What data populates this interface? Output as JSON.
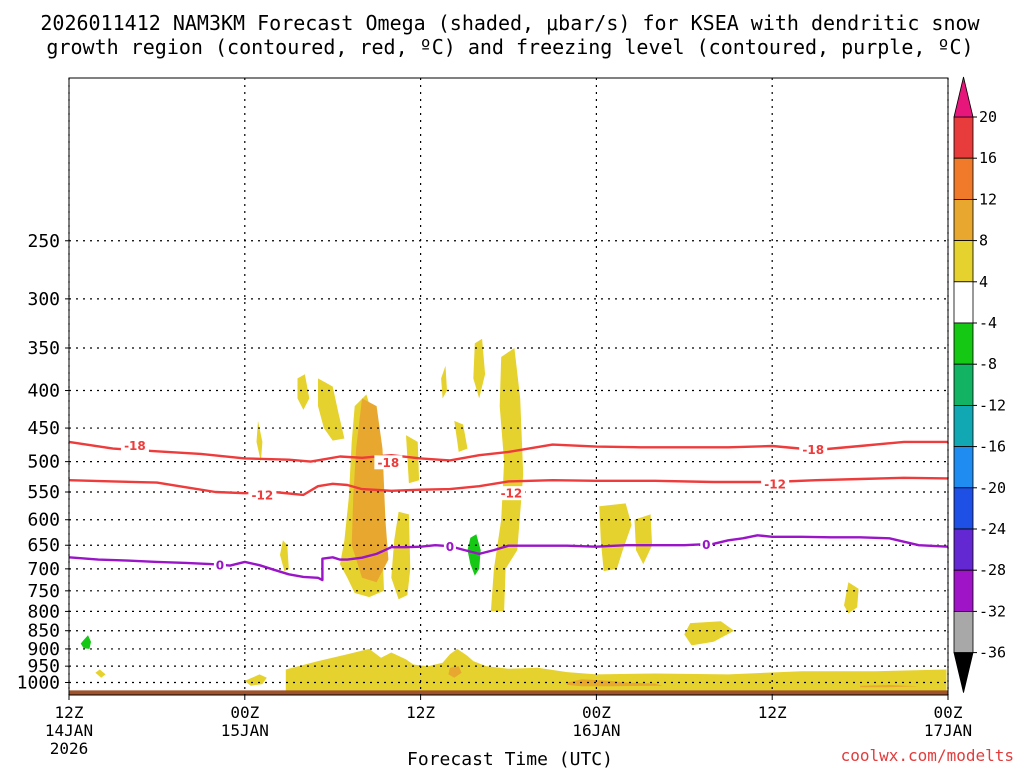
{
  "chart_data": {
    "type": "heatmap",
    "title_line1": "2026011412 NAM3KM Forecast Omega (shaded, μbar/s) for KSEA with dendritic snow",
    "title_line2": "growth region (contoured, red, ºC) and freezing level (contoured, purple, ºC)",
    "xlabel": "Forecast Time (UTC)",
    "ylabel": "",
    "credit": "coolwx.com/modelts",
    "x_unit": "forecast hour",
    "xlim": [
      0,
      60
    ],
    "ylim_hpa": [
      1040,
      150
    ],
    "y_ticks": [
      {
        "label": "250",
        "p": 250
      },
      {
        "label": "300",
        "p": 300
      },
      {
        "label": "350",
        "p": 350
      },
      {
        "label": "400",
        "p": 400
      },
      {
        "label": "450",
        "p": 450
      },
      {
        "label": "500",
        "p": 500
      },
      {
        "label": "550",
        "p": 550
      },
      {
        "label": "600",
        "p": 600
      },
      {
        "label": "650",
        "p": 650
      },
      {
        "label": "700",
        "p": 700
      },
      {
        "label": "750",
        "p": 750
      },
      {
        "label": "800",
        "p": 800
      },
      {
        "label": "850",
        "p": 850
      },
      {
        "label": "900",
        "p": 900
      },
      {
        "label": "950",
        "p": 950
      },
      {
        "label": "1000",
        "p": 1000
      }
    ],
    "x_ticks": [
      {
        "h": 0,
        "line1": "12Z",
        "line2": "14JAN",
        "line3": "2026"
      },
      {
        "h": 12,
        "line1": "00Z",
        "line2": "15JAN",
        "line3": ""
      },
      {
        "h": 24,
        "line1": "12Z",
        "line2": "",
        "line3": ""
      },
      {
        "h": 36,
        "line1": "00Z",
        "line2": "16JAN",
        "line3": ""
      },
      {
        "h": 48,
        "line1": "12Z",
        "line2": "",
        "line3": ""
      },
      {
        "h": 60,
        "line1": "00Z",
        "line2": "17JAN",
        "line3": ""
      }
    ],
    "colorbar": {
      "labels": [
        "20",
        "16",
        "12",
        "8",
        "4",
        "-4",
        "-8",
        "-12",
        "-16",
        "-20",
        "-24",
        "-28",
        "-32",
        "-36"
      ],
      "colors": [
        "#e83c3c",
        "#f07a2a",
        "#e8a830",
        "#e6d22e",
        "#ffffff",
        "#14c814",
        "#12b464",
        "#11a8b4",
        "#1e8cf0",
        "#1e50e6",
        "#6428d2",
        "#a014c8",
        "#a8a8a8"
      ],
      "top_arrow_color": "#e6167a",
      "bottom_arrow_color": "#000000"
    },
    "ground_color": "#a0522d",
    "omega_regions": [
      {
        "value": 6,
        "points": [
          [
            2.1,
            960
          ],
          [
            2.5,
            975
          ],
          [
            2.2,
            985
          ],
          [
            1.8,
            970
          ]
        ]
      },
      {
        "value": 6,
        "points": [
          [
            12.9,
            440
          ],
          [
            13.2,
            470
          ],
          [
            13.1,
            500
          ],
          [
            12.8,
            470
          ]
        ]
      },
      {
        "value": 6,
        "points": [
          [
            14.6,
            640
          ],
          [
            14.9,
            650
          ],
          [
            15.0,
            700
          ],
          [
            14.7,
            705
          ],
          [
            14.4,
            670
          ]
        ]
      },
      {
        "value": 6,
        "points": [
          [
            15.6,
            385
          ],
          [
            16.1,
            380
          ],
          [
            16.4,
            410
          ],
          [
            16.0,
            425
          ],
          [
            15.6,
            410
          ]
        ]
      },
      {
        "value": 6,
        "points": [
          [
            17.0,
            385
          ],
          [
            18.0,
            395
          ],
          [
            18.4,
            430
          ],
          [
            18.8,
            465
          ],
          [
            18.0,
            468
          ],
          [
            17.4,
            450
          ],
          [
            17.0,
            420
          ]
        ]
      },
      {
        "value": 6,
        "points": [
          [
            19.5,
            420
          ],
          [
            20.3,
            405
          ],
          [
            21.0,
            450
          ],
          [
            21.3,
            560
          ],
          [
            21.4,
            660
          ],
          [
            21.5,
            750
          ],
          [
            20.5,
            765
          ],
          [
            19.5,
            755
          ],
          [
            19.0,
            720
          ],
          [
            18.5,
            690
          ],
          [
            18.8,
            640
          ],
          [
            19.1,
            560
          ],
          [
            19.3,
            470
          ]
        ]
      },
      {
        "value": 6,
        "points": [
          [
            22.5,
            585
          ],
          [
            23.2,
            590
          ],
          [
            23.3,
            700
          ],
          [
            23.1,
            760
          ],
          [
            22.5,
            770
          ],
          [
            22.0,
            720
          ],
          [
            22.2,
            640
          ]
        ]
      },
      {
        "value": 6,
        "points": [
          [
            23.0,
            460
          ],
          [
            23.8,
            470
          ],
          [
            23.9,
            530
          ],
          [
            23.2,
            535
          ]
        ]
      },
      {
        "value": 6,
        "points": [
          [
            25.4,
            385
          ],
          [
            25.7,
            370
          ],
          [
            25.8,
            400
          ],
          [
            25.5,
            410
          ]
        ]
      },
      {
        "value": 6,
        "points": [
          [
            26.3,
            440
          ],
          [
            26.9,
            445
          ],
          [
            27.2,
            480
          ],
          [
            26.6,
            485
          ]
        ]
      },
      {
        "value": 6,
        "points": [
          [
            27.7,
            345
          ],
          [
            28.2,
            340
          ],
          [
            28.4,
            380
          ],
          [
            28.0,
            410
          ],
          [
            27.6,
            385
          ]
        ]
      },
      {
        "value": 6,
        "points": [
          [
            29.5,
            360
          ],
          [
            30.4,
            350
          ],
          [
            30.8,
            410
          ],
          [
            31.0,
            520
          ],
          [
            30.6,
            660
          ],
          [
            29.8,
            700
          ],
          [
            29.7,
            800
          ],
          [
            28.8,
            800
          ],
          [
            29.0,
            700
          ],
          [
            29.5,
            600
          ],
          [
            29.7,
            500
          ],
          [
            29.4,
            420
          ]
        ]
      },
      {
        "value": 6,
        "points": [
          [
            36.2,
            575
          ],
          [
            38.0,
            570
          ],
          [
            38.4,
            610
          ],
          [
            37.8,
            660
          ],
          [
            37.4,
            700
          ],
          [
            36.5,
            705
          ],
          [
            36.3,
            640
          ]
        ]
      },
      {
        "value": 6,
        "points": [
          [
            38.6,
            600
          ],
          [
            39.7,
            590
          ],
          [
            39.8,
            650
          ],
          [
            39.2,
            690
          ],
          [
            38.7,
            660
          ]
        ]
      },
      {
        "value": 6,
        "points": [
          [
            42.0,
            860
          ],
          [
            42.4,
            830
          ],
          [
            44.5,
            825
          ],
          [
            45.4,
            850
          ],
          [
            44.0,
            880
          ],
          [
            42.5,
            890
          ]
        ]
      },
      {
        "value": 6,
        "points": [
          [
            53.2,
            730
          ],
          [
            53.9,
            745
          ],
          [
            53.8,
            790
          ],
          [
            53.2,
            805
          ],
          [
            52.9,
            785
          ]
        ]
      },
      {
        "value": 6,
        "points": [
          [
            12.0,
            995
          ],
          [
            13.0,
            975
          ],
          [
            13.5,
            985
          ],
          [
            13.2,
            1005
          ],
          [
            12.4,
            1010
          ]
        ]
      },
      {
        "value": 6,
        "points": [
          [
            14.8,
            960
          ],
          [
            17.0,
            935
          ],
          [
            19.0,
            915
          ],
          [
            20.5,
            900
          ],
          [
            21.3,
            925
          ],
          [
            22.0,
            910
          ],
          [
            23.0,
            930
          ],
          [
            23.5,
            945
          ],
          [
            24.5,
            950
          ],
          [
            25.5,
            940
          ],
          [
            26.0,
            915
          ],
          [
            26.5,
            900
          ],
          [
            27.2,
            920
          ],
          [
            27.6,
            935
          ],
          [
            28.5,
            950
          ],
          [
            30.0,
            958
          ],
          [
            32.0,
            955
          ],
          [
            34.0,
            968
          ],
          [
            36.0,
            975
          ],
          [
            40.0,
            972
          ],
          [
            45.0,
            975
          ],
          [
            50.0,
            965
          ],
          [
            55.0,
            965
          ],
          [
            59.9,
            960
          ],
          [
            59.9,
            1030
          ],
          [
            14.8,
            1030
          ]
        ]
      },
      {
        "value": 10,
        "points": [
          [
            20.0,
            410
          ],
          [
            21.0,
            420
          ],
          [
            21.4,
            480
          ],
          [
            21.6,
            600
          ],
          [
            21.8,
            680
          ],
          [
            21.0,
            730
          ],
          [
            20.0,
            720
          ],
          [
            19.3,
            650
          ],
          [
            19.4,
            560
          ],
          [
            19.6,
            480
          ]
        ]
      },
      {
        "value": 10,
        "points": [
          [
            26.0,
            955
          ],
          [
            26.6,
            950
          ],
          [
            26.8,
            970
          ],
          [
            26.3,
            985
          ],
          [
            25.9,
            975
          ]
        ]
      },
      {
        "value": 10,
        "points": [
          [
            34.0,
            1000
          ],
          [
            35.0,
            990
          ],
          [
            37.0,
            995
          ],
          [
            38.0,
            1000
          ],
          [
            40.0,
            1003
          ],
          [
            40.5,
            1010
          ],
          [
            37.0,
            1012
          ],
          [
            35.0,
            1012
          ],
          [
            34.0,
            1008
          ]
        ]
      },
      {
        "value": 10,
        "points": [
          [
            54.0,
            1010
          ],
          [
            56.0,
            1008
          ],
          [
            58.0,
            1012
          ],
          [
            56.0,
            1015
          ],
          [
            54.0,
            1015
          ]
        ]
      },
      {
        "value": -6,
        "points": [
          [
            1.0,
            875
          ],
          [
            1.3,
            862
          ],
          [
            1.5,
            880
          ],
          [
            1.4,
            900
          ],
          [
            1.0,
            898
          ],
          [
            0.8,
            885
          ]
        ]
      },
      {
        "value": -6,
        "points": [
          [
            27.4,
            635
          ],
          [
            27.8,
            628
          ],
          [
            28.1,
            660
          ],
          [
            28.0,
            700
          ],
          [
            27.7,
            715
          ],
          [
            27.4,
            690
          ],
          [
            27.2,
            660
          ]
        ]
      }
    ],
    "series": [
      {
        "name": "-18 C isotherm",
        "color": "#ee3b3b",
        "label": "-18",
        "label_positions": [
          [
            4.5,
            475
          ],
          [
            50.8,
            481
          ],
          [
            21.8,
            501
          ]
        ],
        "x": [
          0,
          3,
          6,
          9,
          12,
          15,
          16.5,
          17.5,
          18.5,
          20,
          22,
          24,
          26,
          28,
          30,
          33,
          36,
          39,
          42,
          45,
          48,
          51,
          54,
          57,
          60
        ],
        "y": [
          470,
          480,
          484,
          488,
          495,
          497,
          500,
          496,
          492,
          494,
          490,
          495,
          498,
          490,
          485,
          474,
          477,
          478,
          478,
          478,
          476,
          482,
          476,
          470,
          470
        ]
      },
      {
        "name": "-12 C isotherm",
        "color": "#ee3b3b",
        "label": "-12",
        "label_positions": [
          [
            13.2,
            555
          ],
          [
            30.2,
            552
          ],
          [
            48.2,
            536
          ]
        ],
        "x": [
          0,
          3,
          6,
          8,
          10,
          12,
          14,
          16,
          17,
          18,
          19,
          20,
          22,
          24,
          26,
          28,
          30,
          33,
          36,
          40,
          44,
          48,
          51,
          54,
          57,
          60
        ],
        "y": [
          530,
          532,
          534,
          542,
          550,
          552,
          550,
          555,
          540,
          536,
          538,
          545,
          548,
          546,
          545,
          540,
          532,
          530,
          531,
          531,
          533,
          533,
          530,
          528,
          526,
          527
        ]
      },
      {
        "name": "0 C freezing level",
        "color": "#9a14c8",
        "label": "0",
        "label_positions": [
          [
            10.3,
            692
          ],
          [
            26.0,
            653
          ],
          [
            43.5,
            649
          ]
        ],
        "x": [
          0,
          2,
          4,
          6,
          8,
          10,
          11,
          12,
          13,
          14,
          15,
          16,
          17,
          17.3,
          17.3,
          18.0,
          18.5,
          19,
          20,
          21,
          22,
          23,
          24,
          25,
          26,
          27,
          28,
          29,
          30,
          32,
          34,
          36,
          38,
          40,
          42,
          44,
          45,
          46,
          47,
          48,
          50,
          52,
          54,
          56,
          58,
          60
        ],
        "y": [
          675,
          680,
          682,
          685,
          687,
          690,
          693,
          685,
          692,
          702,
          712,
          718,
          720,
          725,
          678,
          675,
          680,
          680,
          676,
          668,
          654,
          654,
          653,
          650,
          652,
          660,
          668,
          660,
          651,
          651,
          651,
          653,
          650,
          650,
          650,
          647,
          640,
          636,
          630,
          633,
          633,
          634,
          634,
          636,
          650,
          653
        ]
      }
    ]
  }
}
